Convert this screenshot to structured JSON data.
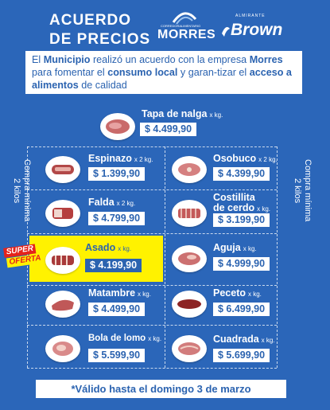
{
  "header": {
    "title_line1": "ACUERDO",
    "title_line2": "DE PRECIOS",
    "brand_morres_small": "CORREDORALIMENTARIO",
    "brand_morres": "MORRES",
    "brand_brown_small": "ALMIRANTE",
    "brand_brown": "Brown"
  },
  "intro": {
    "t1": "El ",
    "b1": "Municipio",
    "t2": " realizó un acuerdo con la empresa ",
    "b2": "Morres",
    "t3": " para fomentar el ",
    "b3": "consumo local",
    "t4": " y garan-tizar el ",
    "b4": "acceso a alimentos",
    "t5": " de calidad"
  },
  "side_note": {
    "left_line1": "Compra mínima",
    "left_line2": "2 kilos",
    "right_line1": "Compra mínima",
    "right_line2": "2 kilos"
  },
  "products": {
    "tapa": {
      "name": "Tapa de nalga",
      "unit": "x kg.",
      "price": "$ 4.499,90"
    },
    "espinazo": {
      "name": "Espinazo",
      "unit": "x 2 kg.",
      "price": "$ 1.399,90"
    },
    "osobuco": {
      "name": "Osobuco",
      "unit": "x 2 kg.",
      "price": "$ 4.399,90"
    },
    "falda": {
      "name": "Falda",
      "unit": "x 2 kg.",
      "price": "$ 4.799,90"
    },
    "costillita": {
      "name_line1": "Costillita",
      "name_line2": "de cerdo",
      "unit": "x kg.",
      "price": "$ 3.199,90"
    },
    "asado": {
      "name": "Asado",
      "unit": "x kg.",
      "price": "$ 4.199,90"
    },
    "aguja": {
      "name": "Aguja",
      "unit": "x kg.",
      "price": "$ 4.999,90"
    },
    "matambre": {
      "name": "Matambre",
      "unit": "x kg.",
      "price": "$ 4.499,90"
    },
    "peceto": {
      "name": "Peceto",
      "unit": "x kg.",
      "price": "$ 6.499,90"
    },
    "bola": {
      "name": "Bola de lomo",
      "unit": "x kg.",
      "price": "$ 5.599,90"
    },
    "cuadrada": {
      "name": "Cuadrada",
      "unit": "x kg.",
      "price": "$ 5.699,90"
    }
  },
  "badge": {
    "line1": "SUPER",
    "line2": "OFERTA"
  },
  "footer": {
    "valid": "*Válido hasta el domingo 3 de marzo"
  },
  "colors": {
    "background": "#2b66b9",
    "text_blue": "#2b63b0",
    "highlight": "#fff200",
    "badge_red": "#e5231b"
  },
  "icons": {
    "product_thumb": "meat-icon"
  }
}
